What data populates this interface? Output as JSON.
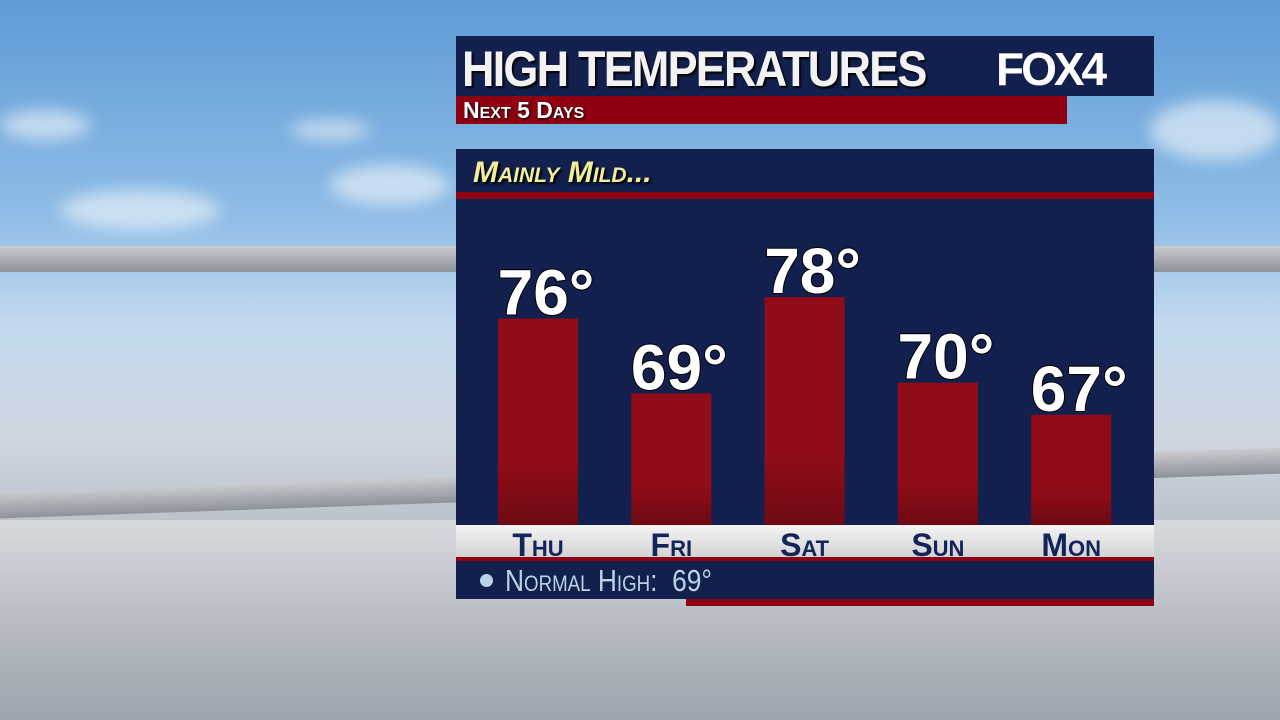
{
  "header": {
    "title": "HIGH TEMPERATURES",
    "subtitle": "Next 5 Days",
    "logo": "FOX4"
  },
  "headline": "Mainly Mild...",
  "normal": {
    "label": "Normal High:",
    "value": "69°"
  },
  "colors": {
    "navy": "#13204e",
    "red": "#8e0012",
    "headline": "#f1ee9c"
  },
  "chart_data": {
    "type": "bar",
    "categories": [
      "Thu",
      "Fri",
      "Sat",
      "Sun",
      "Mon"
    ],
    "values": [
      76,
      69,
      78,
      70,
      67
    ],
    "labels": [
      "76°",
      "69°",
      "78°",
      "70°",
      "67°"
    ],
    "title": "HIGH TEMPERATURES",
    "subtitle": "Next 5 Days",
    "grid": false
  }
}
